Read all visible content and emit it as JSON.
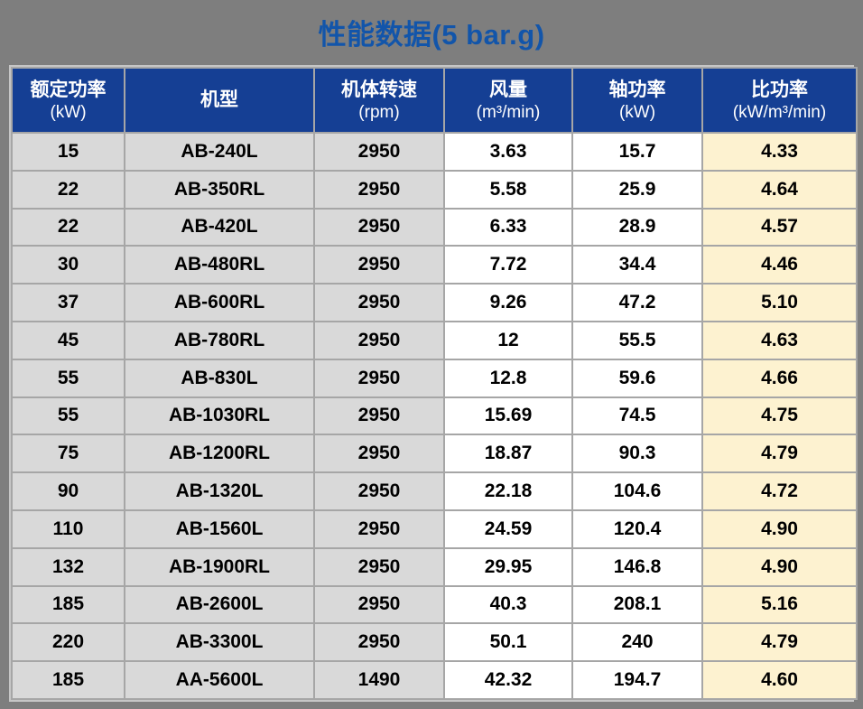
{
  "page": {
    "title": "性能数据(5 bar.g)"
  },
  "table": {
    "headers": [
      {
        "label": "额定功率",
        "unit": "(kW)"
      },
      {
        "label": "机型",
        "unit": ""
      },
      {
        "label": "机体转速",
        "unit": "(rpm)"
      },
      {
        "label": "风量",
        "unit": "(m³/min)"
      },
      {
        "label": "轴功率",
        "unit": "(kW)"
      },
      {
        "label": "比功率",
        "unit": "(kW/m³/min)"
      }
    ],
    "rows": [
      [
        "15",
        "AB-240L",
        "2950",
        "3.63",
        "15.7",
        "4.33"
      ],
      [
        "22",
        "AB-350RL",
        "2950",
        "5.58",
        "25.9",
        "4.64"
      ],
      [
        "22",
        "AB-420L",
        "2950",
        "6.33",
        "28.9",
        "4.57"
      ],
      [
        "30",
        "AB-480RL",
        "2950",
        "7.72",
        "34.4",
        "4.46"
      ],
      [
        "37",
        "AB-600RL",
        "2950",
        "9.26",
        "47.2",
        "5.10"
      ],
      [
        "45",
        "AB-780RL",
        "2950",
        "12",
        "55.5",
        "4.63"
      ],
      [
        "55",
        "AB-830L",
        "2950",
        "12.8",
        "59.6",
        "4.66"
      ],
      [
        "55",
        "AB-1030RL",
        "2950",
        "15.69",
        "74.5",
        "4.75"
      ],
      [
        "75",
        "AB-1200RL",
        "2950",
        "18.87",
        "90.3",
        "4.79"
      ],
      [
        "90",
        "AB-1320L",
        "2950",
        "22.18",
        "104.6",
        "4.72"
      ],
      [
        "110",
        "AB-1560L",
        "2950",
        "24.59",
        "120.4",
        "4.90"
      ],
      [
        "132",
        "AB-1900RL",
        "2950",
        "29.95",
        "146.8",
        "4.90"
      ],
      [
        "185",
        "AB-2600L",
        "2950",
        "40.3",
        "208.1",
        "5.16"
      ],
      [
        "220",
        "AB-3300L",
        "2950",
        "50.1",
        "240",
        "4.79"
      ],
      [
        "185",
        "AA-5600L",
        "1490",
        "42.32",
        "194.7",
        "4.60"
      ]
    ]
  },
  "colors": {
    "page_background": "#7E7E7E",
    "title_text": "#1255AA",
    "header_background": "#153F94",
    "header_text": "#FFFFFF",
    "gray_cell": "#D9D9D9",
    "white_cell": "#FFFFFF",
    "highlight_cell": "#FDF2D0",
    "grid_border": "#A6A6A6",
    "outer_border": "#C6C6C6"
  },
  "chart_data": {
    "type": "table",
    "title": "性能数据(5 bar.g)",
    "columns": [
      "额定功率 (kW)",
      "机型",
      "机体转速 (rpm)",
      "风量 (m³/min)",
      "轴功率 (kW)",
      "比功率 (kW/m³/min)"
    ],
    "rows": [
      [
        15,
        "AB-240L",
        2950,
        3.63,
        15.7,
        4.33
      ],
      [
        22,
        "AB-350RL",
        2950,
        5.58,
        25.9,
        4.64
      ],
      [
        22,
        "AB-420L",
        2950,
        6.33,
        28.9,
        4.57
      ],
      [
        30,
        "AB-480RL",
        2950,
        7.72,
        34.4,
        4.46
      ],
      [
        37,
        "AB-600RL",
        2950,
        9.26,
        47.2,
        5.1
      ],
      [
        45,
        "AB-780RL",
        2950,
        12,
        55.5,
        4.63
      ],
      [
        55,
        "AB-830L",
        2950,
        12.8,
        59.6,
        4.66
      ],
      [
        55,
        "AB-1030RL",
        2950,
        15.69,
        74.5,
        4.75
      ],
      [
        75,
        "AB-1200RL",
        2950,
        18.87,
        90.3,
        4.79
      ],
      [
        90,
        "AB-1320L",
        2950,
        22.18,
        104.6,
        4.72
      ],
      [
        110,
        "AB-1560L",
        2950,
        24.59,
        120.4,
        4.9
      ],
      [
        132,
        "AB-1900RL",
        2950,
        29.95,
        146.8,
        4.9
      ],
      [
        185,
        "AB-2600L",
        2950,
        40.3,
        208.1,
        5.16
      ],
      [
        220,
        "AB-3300L",
        2950,
        50.1,
        240,
        4.79
      ],
      [
        185,
        "AA-5600L",
        1490,
        42.32,
        194.7,
        4.6
      ]
    ]
  }
}
